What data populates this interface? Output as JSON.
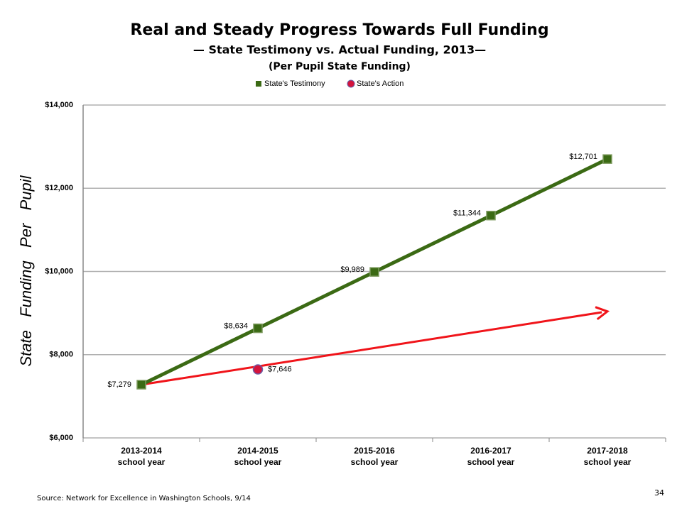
{
  "chart_data": {
    "type": "line",
    "title": "Real and Steady Progress Towards Full Funding",
    "subtitle": [
      "— State Testimony vs. Actual Funding, 2013—",
      "(Per Pupil State Funding)"
    ],
    "y_label": "State   Funding   Per   Pupil",
    "categories": [
      "2013-2014 school year",
      "2014-2015 school year",
      "2015-2016 school year",
      "2016-2017 school year",
      "2017-2018 school year"
    ],
    "series": [
      {
        "name": "State's Testimony",
        "color": "#3b6a14",
        "marker": "square",
        "values": [
          7279,
          8634,
          9989,
          11344,
          12701
        ],
        "value_labels": [
          "$7,279",
          "$8,634",
          "$9,989",
          "$11,344",
          "$12,701"
        ]
      },
      {
        "name": "State's Action",
        "color": "#d4143c",
        "marker": "circle",
        "values": [
          null,
          7646,
          null,
          null,
          null
        ],
        "value_labels": [
          null,
          "$7,646",
          null,
          null,
          null
        ]
      }
    ],
    "trend": {
      "color": "#f0141a",
      "values": [
        7279,
        null,
        null,
        null,
        9040
      ]
    },
    "ylim": [
      6000,
      14000
    ],
    "yticks": [
      {
        "value": 6000,
        "label": "$6,000"
      },
      {
        "value": 8000,
        "label": "$8,000"
      },
      {
        "value": 10000,
        "label": "$10,000"
      },
      {
        "value": 12000,
        "label": "$12,000"
      },
      {
        "value": 14000,
        "label": "$14,000"
      }
    ],
    "grid": true,
    "legend": "top"
  },
  "footer": {
    "source": "Source: Network for Excellence in Washington Schools, 9/14",
    "page_number": "34"
  }
}
